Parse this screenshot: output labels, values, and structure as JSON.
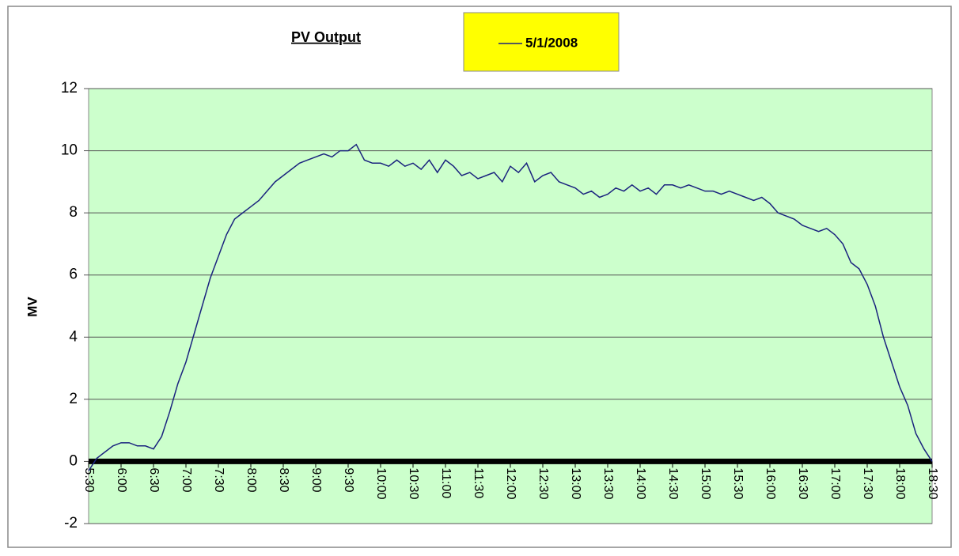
{
  "chart_data": {
    "type": "line",
    "title": "PV Output",
    "y_label": "MV",
    "x": [
      5.5,
      5.625,
      5.75,
      5.875,
      6,
      6.125,
      6.25,
      6.375,
      6.5,
      6.625,
      6.75,
      6.875,
      7,
      7.125,
      7.25,
      7.375,
      7.5,
      7.625,
      7.75,
      7.875,
      8,
      8.125,
      8.25,
      8.375,
      8.5,
      8.625,
      8.75,
      8.875,
      9,
      9.125,
      9.25,
      9.375,
      9.5,
      9.625,
      9.75,
      9.875,
      10,
      10.125,
      10.25,
      10.375,
      10.5,
      10.625,
      10.75,
      10.875,
      11,
      11.125,
      11.25,
      11.375,
      11.5,
      11.625,
      11.75,
      11.875,
      12,
      12.125,
      12.25,
      12.375,
      12.5,
      12.625,
      12.75,
      12.875,
      13,
      13.125,
      13.25,
      13.375,
      13.5,
      13.625,
      13.75,
      13.875,
      14,
      14.125,
      14.25,
      14.375,
      14.5,
      14.625,
      14.75,
      14.875,
      15,
      15.125,
      15.25,
      15.375,
      15.5,
      15.625,
      15.75,
      15.875,
      16,
      16.125,
      16.25,
      16.375,
      16.5,
      16.625,
      16.75,
      16.875,
      17,
      17.125,
      17.25,
      17.375,
      17.5,
      17.625,
      17.75,
      17.875,
      18,
      18.125,
      18.25,
      18.375,
      18.5
    ],
    "series": [
      {
        "name": "5/1/2008",
        "color": "#1a237e",
        "values": [
          -0.3,
          0.1,
          0.3,
          0.5,
          0.6,
          0.6,
          0.5,
          0.5,
          0.4,
          0.8,
          1.6,
          2.5,
          3.2,
          4.1,
          5.0,
          5.9,
          6.6,
          7.3,
          7.8,
          8.0,
          8.2,
          8.4,
          8.7,
          9.0,
          9.2,
          9.4,
          9.6,
          9.7,
          9.8,
          9.9,
          9.8,
          10.0,
          10.0,
          10.2,
          9.7,
          9.6,
          9.6,
          9.5,
          9.7,
          9.5,
          9.6,
          9.4,
          9.7,
          9.3,
          9.7,
          9.5,
          9.2,
          9.3,
          9.1,
          9.2,
          9.3,
          9.0,
          9.5,
          9.3,
          9.6,
          9.0,
          9.2,
          9.3,
          9.0,
          8.9,
          8.8,
          8.6,
          8.7,
          8.5,
          8.6,
          8.8,
          8.7,
          8.9,
          8.7,
          8.8,
          8.6,
          8.9,
          8.9,
          8.8,
          8.9,
          8.8,
          8.7,
          8.7,
          8.6,
          8.7,
          8.6,
          8.5,
          8.4,
          8.5,
          8.3,
          8.0,
          7.9,
          7.8,
          7.6,
          7.5,
          7.4,
          7.5,
          7.3,
          7.0,
          6.4,
          6.2,
          5.7,
          5.0,
          4.0,
          3.2,
          2.4,
          1.8,
          0.9,
          0.4,
          0.0
        ]
      }
    ],
    "xlim": [
      5.5,
      18.5
    ],
    "xticks": [
      {
        "value": 5.5,
        "label": "5:30"
      },
      {
        "value": 6,
        "label": "6:00"
      },
      {
        "value": 6.5,
        "label": "6:30"
      },
      {
        "value": 7,
        "label": "7:00"
      },
      {
        "value": 7.5,
        "label": "7:30"
      },
      {
        "value": 8,
        "label": "8:00"
      },
      {
        "value": 8.5,
        "label": "8:30"
      },
      {
        "value": 9,
        "label": "9:00"
      },
      {
        "value": 9.5,
        "label": "9:30"
      },
      {
        "value": 10,
        "label": "10:00"
      },
      {
        "value": 10.5,
        "label": "10:30"
      },
      {
        "value": 11,
        "label": "11:00"
      },
      {
        "value": 11.5,
        "label": "11:30"
      },
      {
        "value": 12,
        "label": "12:00"
      },
      {
        "value": 12.5,
        "label": "12:30"
      },
      {
        "value": 13,
        "label": "13:00"
      },
      {
        "value": 13.5,
        "label": "13:30"
      },
      {
        "value": 14,
        "label": "14:00"
      },
      {
        "value": 14.5,
        "label": "14:30"
      },
      {
        "value": 15,
        "label": "15:00"
      },
      {
        "value": 15.5,
        "label": "15:30"
      },
      {
        "value": 16,
        "label": "16:00"
      },
      {
        "value": 16.5,
        "label": "16:30"
      },
      {
        "value": 17,
        "label": "17:00"
      },
      {
        "value": 17.5,
        "label": "17:30"
      },
      {
        "value": 18,
        "label": "18:00"
      },
      {
        "value": 18.5,
        "label": "18:30"
      }
    ],
    "ylim": [
      -2,
      12
    ],
    "yticks": [
      -2,
      0,
      2,
      4,
      6,
      8,
      10,
      12
    ],
    "grid": true,
    "plot_background": "#ccffcc",
    "legend_background": "#ffff00"
  }
}
